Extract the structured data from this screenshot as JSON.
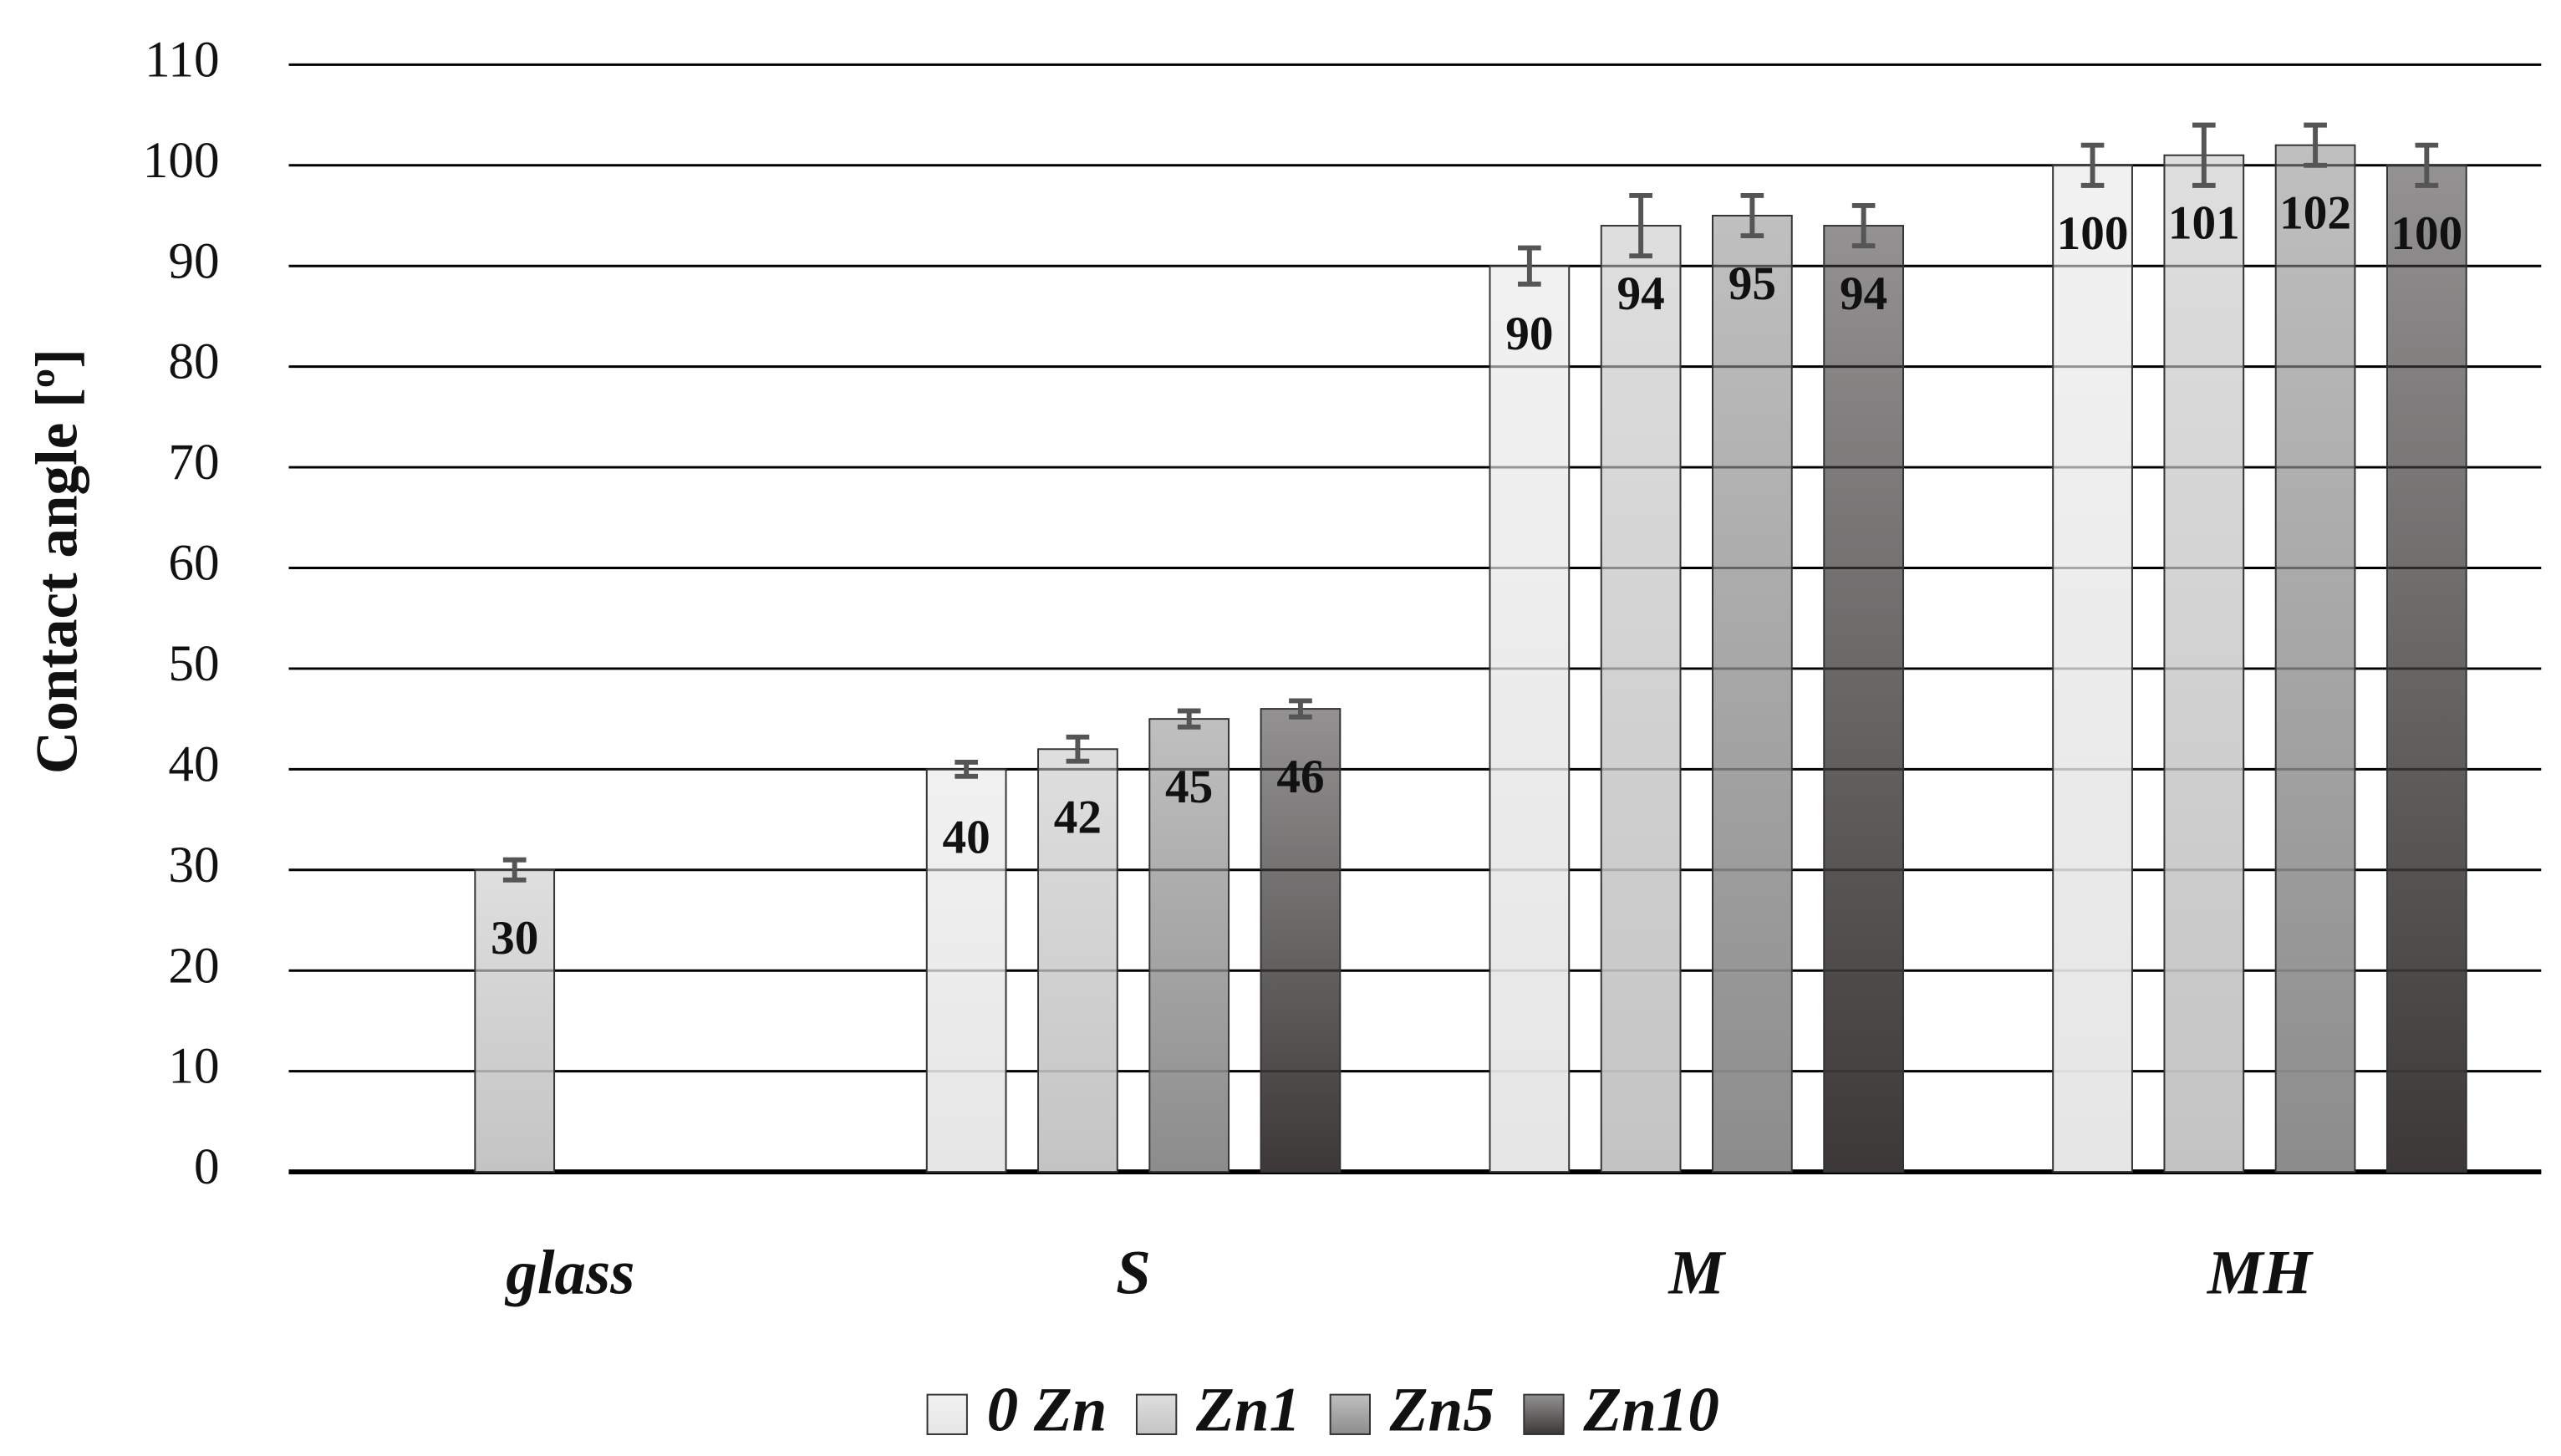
{
  "chart_data": {
    "type": "bar",
    "y_label": "Contact angle [º]",
    "categories": [
      "glass",
      "S",
      "M",
      "MH"
    ],
    "series": [
      {
        "name": "0 Zn",
        "color": "#e6e6e6",
        "values": [
          null,
          40,
          90,
          100
        ],
        "errors": [
          null,
          0.7,
          1.8,
          2
        ]
      },
      {
        "name": "Zn1",
        "color": "#c4c4c4",
        "values": [
          30,
          42,
          94,
          101
        ],
        "errors": [
          1,
          1.2,
          3,
          3
        ]
      },
      {
        "name": "Zn5",
        "color": "#8c8c8c",
        "values": [
          null,
          45,
          95,
          102
        ],
        "errors": [
          null,
          0.8,
          2,
          2
        ]
      },
      {
        "name": "Zn10",
        "color": "#3c3838",
        "values": [
          null,
          46,
          94,
          100
        ],
        "errors": [
          null,
          0.8,
          2,
          2
        ]
      }
    ],
    "ylim": [
      0,
      110
    ],
    "yticks": [
      0,
      10,
      20,
      30,
      40,
      50,
      60,
      70,
      80,
      90,
      100,
      110
    ],
    "grid": true
  }
}
